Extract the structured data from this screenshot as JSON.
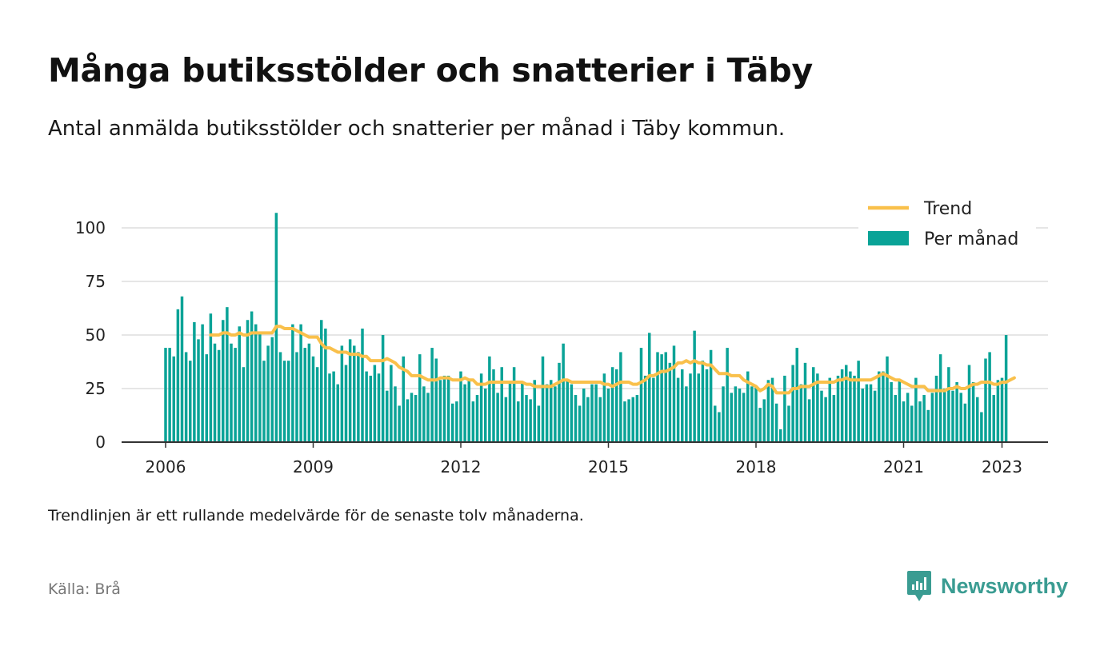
{
  "header": {
    "title": "Många butiksstölder och snatterier i Täby",
    "subtitle": "Antal anmälda butiksstölder och snatterier per månad i Täby kommun."
  },
  "footer": {
    "note": "Trendlinjen är ett rullande medelvärde för de senaste tolv månaderna.",
    "source": "Källa: Brå",
    "brand": "Newsworthy",
    "brand_icon": "newsworthy-logo-icon"
  },
  "colors": {
    "bar": "#0aa397",
    "trend": "#f9c04b",
    "grid": "#dddddd",
    "axis": "#333333",
    "brand": "#3a9c92"
  },
  "chart_data": {
    "type": "bar",
    "start": "2006-01",
    "title": "",
    "xlabel": "",
    "ylabel": "",
    "ylim": [
      0,
      110
    ],
    "yticks": [
      0,
      25,
      50,
      75,
      100
    ],
    "xticks": [
      "2006",
      "2009",
      "2012",
      "2015",
      "2018",
      "2021",
      "2023"
    ],
    "grid": true,
    "legend_position": "top-right",
    "series": [
      {
        "name": "Per månad",
        "type": "bar",
        "values": [
          44,
          44,
          40,
          62,
          68,
          42,
          38,
          56,
          48,
          55,
          41,
          60,
          46,
          43,
          57,
          63,
          46,
          44,
          54,
          35,
          57,
          61,
          55,
          51,
          38,
          45,
          49,
          107,
          42,
          38,
          38,
          55,
          42,
          55,
          44,
          46,
          40,
          35,
          57,
          53,
          32,
          33,
          27,
          45,
          36,
          48,
          45,
          42,
          53,
          33,
          31,
          36,
          32,
          50,
          24,
          36,
          26,
          17,
          40,
          20,
          23,
          22,
          41,
          26,
          23,
          44,
          39,
          29,
          31,
          31,
          18,
          19,
          33,
          27,
          29,
          19,
          22,
          32,
          25,
          40,
          34,
          23,
          35,
          21,
          28,
          35,
          19,
          28,
          22,
          20,
          29,
          17,
          40,
          27,
          29,
          26,
          37,
          46,
          29,
          27,
          22,
          17,
          25,
          21,
          27,
          27,
          21,
          32,
          25,
          35,
          34,
          42,
          19,
          20,
          21,
          22,
          44,
          31,
          51,
          30,
          42,
          41,
          42,
          37,
          45,
          30,
          34,
          26,
          32,
          52,
          32,
          38,
          34,
          43,
          17,
          14,
          26,
          44,
          23,
          26,
          25,
          23,
          33,
          26,
          26,
          16,
          20,
          29,
          30,
          18,
          6,
          31,
          17,
          36,
          44,
          27,
          37,
          20,
          35,
          32,
          24,
          21,
          30,
          22,
          31,
          34,
          36,
          33,
          31,
          38,
          25,
          27,
          27,
          24,
          33,
          33,
          40,
          28,
          22,
          29,
          19,
          23,
          17,
          30,
          19,
          22,
          15,
          23,
          31,
          41,
          25,
          35,
          24,
          28,
          23,
          18,
          36,
          28,
          21,
          14,
          39,
          42,
          22,
          29,
          30,
          50
        ]
      },
      {
        "name": "Trend",
        "type": "line",
        "values": [
          null,
          null,
          null,
          null,
          null,
          null,
          null,
          null,
          null,
          null,
          null,
          50,
          50,
          50,
          51,
          51,
          50,
          50,
          51,
          50,
          50,
          51,
          51,
          51,
          51,
          51,
          51,
          54,
          54,
          53,
          53,
          53,
          52,
          51,
          50,
          49,
          49,
          49,
          46,
          44,
          44,
          43,
          42,
          42,
          42,
          41,
          41,
          41,
          40,
          40,
          38,
          38,
          38,
          38,
          39,
          38,
          37,
          35,
          34,
          33,
          31,
          31,
          31,
          30,
          29,
          29,
          29,
          30,
          30,
          30,
          29,
          29,
          29,
          30,
          29,
          29,
          27,
          27,
          27,
          28,
          28,
          28,
          28,
          28,
          28,
          28,
          28,
          28,
          27,
          27,
          26,
          26,
          26,
          26,
          26,
          27,
          28,
          29,
          29,
          28,
          28,
          28,
          28,
          28,
          28,
          28,
          28,
          27,
          27,
          26,
          27,
          28,
          28,
          28,
          27,
          27,
          28,
          29,
          31,
          31,
          32,
          33,
          33,
          34,
          35,
          37,
          37,
          38,
          37,
          38,
          37,
          37,
          36,
          36,
          34,
          32,
          32,
          32,
          31,
          31,
          31,
          29,
          28,
          27,
          26,
          24,
          25,
          27,
          26,
          23,
          23,
          23,
          23,
          25,
          25,
          26,
          26,
          26,
          27,
          28,
          28,
          28,
          28,
          28,
          29,
          29,
          30,
          29,
          29,
          29,
          29,
          29,
          29,
          30,
          31,
          32,
          31,
          30,
          29,
          29,
          28,
          27,
          26,
          26,
          26,
          26,
          24,
          24,
          24,
          24,
          24,
          25,
          25,
          26,
          25,
          25,
          26,
          27,
          27,
          28,
          28,
          28,
          27,
          27,
          28,
          28,
          29,
          30
        ]
      }
    ]
  }
}
